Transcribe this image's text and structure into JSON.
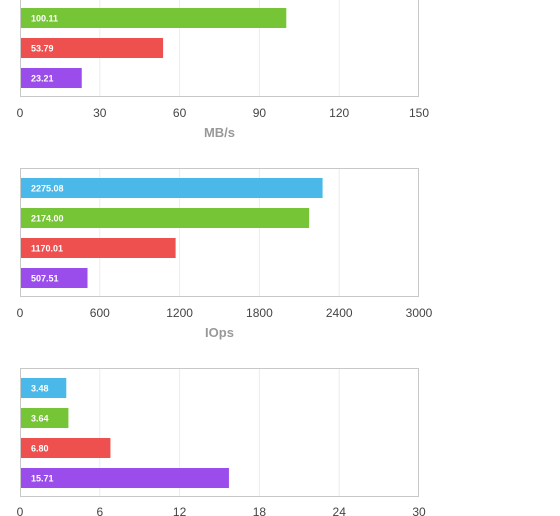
{
  "colors": {
    "blue": "#4ab9ea",
    "green": "#76c537",
    "red": "#ee5050",
    "purple": "#9a4deb"
  },
  "chart_data": [
    {
      "type": "bar",
      "orientation": "horizontal",
      "xlabel": "MB/s",
      "xlim": [
        0,
        150
      ],
      "xticks": [
        "0",
        "30",
        "60",
        "90",
        "120",
        "150"
      ],
      "grid": true,
      "bars": [
        {
          "value": 100.11,
          "label": "100.11",
          "color": "green"
        },
        {
          "value": 53.79,
          "label": "53.79",
          "color": "red"
        },
        {
          "value": 23.21,
          "label": "23.21",
          "color": "purple"
        }
      ]
    },
    {
      "type": "bar",
      "orientation": "horizontal",
      "xlabel": "IOps",
      "xlim": [
        0,
        3000
      ],
      "xticks": [
        "0",
        "600",
        "1200",
        "1800",
        "2400",
        "3000"
      ],
      "grid": true,
      "bars": [
        {
          "value": 2275.08,
          "label": "2275.08",
          "color": "blue"
        },
        {
          "value": 2174.0,
          "label": "2174.00",
          "color": "green"
        },
        {
          "value": 1170.01,
          "label": "1170.01",
          "color": "red"
        },
        {
          "value": 507.51,
          "label": "507.51",
          "color": "purple"
        }
      ]
    },
    {
      "type": "bar",
      "orientation": "horizontal",
      "xlabel": "",
      "xlim": [
        0,
        30
      ],
      "xticks": [
        "0",
        "6",
        "12",
        "18",
        "24",
        "30"
      ],
      "grid": true,
      "bars": [
        {
          "value": 3.48,
          "label": "3.48",
          "color": "blue"
        },
        {
          "value": 3.64,
          "label": "3.64",
          "color": "green"
        },
        {
          "value": 6.8,
          "label": "6.80",
          "color": "red"
        },
        {
          "value": 15.71,
          "label": "15.71",
          "color": "purple"
        }
      ]
    }
  ]
}
